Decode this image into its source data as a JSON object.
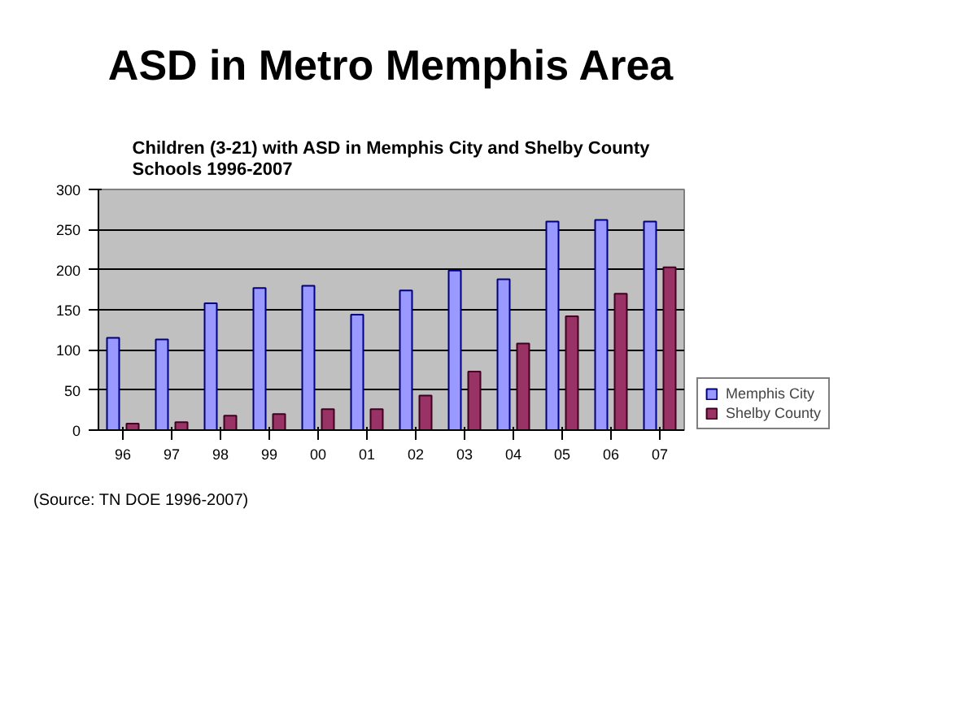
{
  "chart_data": {
    "type": "bar",
    "title": "ASD in Metro Memphis Area",
    "subtitle": "Children (3-21) with ASD in Memphis City and Shelby County Schools 1996-2007",
    "annotations": [
      "(Source:  TN DOE 1996-2007)"
    ],
    "categories": [
      "96",
      "97",
      "98",
      "99",
      "00",
      "01",
      "02",
      "03",
      "04",
      "05",
      "06",
      "07"
    ],
    "series": [
      {
        "name": "Memphis City",
        "color": "#9999ff",
        "values": [
          115,
          113,
          158,
          177,
          180,
          144,
          174,
          199,
          188,
          260,
          262,
          260
        ]
      },
      {
        "name": "Shelby County",
        "color": "#993366",
        "values": [
          8,
          10,
          18,
          20,
          26,
          26,
          43,
          73,
          108,
          142,
          170,
          203
        ]
      }
    ],
    "ylim": [
      0,
      300
    ],
    "yticks": [
      0,
      50,
      100,
      150,
      200,
      250,
      300
    ],
    "grid": "y",
    "legend": "right"
  }
}
